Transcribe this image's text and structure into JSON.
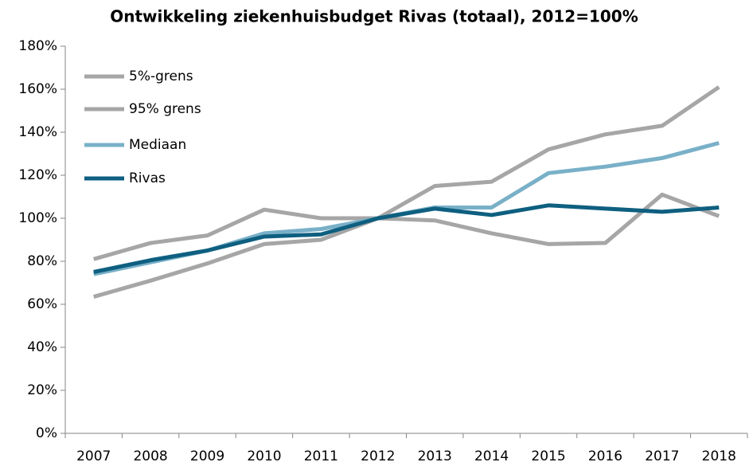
{
  "chart_data": {
    "type": "line",
    "title": "Ontwikkeling ziekenhuisbudget Rivas (totaal), 2012=100%",
    "categories": [
      "2007",
      "2008",
      "2009",
      "2010",
      "2011",
      "2012",
      "2013",
      "2014",
      "2015",
      "2016",
      "2017",
      "2018"
    ],
    "series": [
      {
        "name": "5%-grens",
        "color": "#a6a6a6",
        "values": [
          63.5,
          71,
          79,
          88,
          90,
          100,
          115,
          117,
          132,
          139,
          143,
          161
        ]
      },
      {
        "name": "95% grens",
        "color": "#a6a6a6",
        "values": [
          81,
          88.5,
          92,
          104,
          100,
          100,
          99,
          93,
          88,
          88.5,
          111,
          101
        ]
      },
      {
        "name": "Mediaan",
        "color": "#79b0c8",
        "values": [
          74,
          79.5,
          85,
          93,
          95,
          100,
          105,
          105,
          121,
          124,
          128,
          135
        ]
      },
      {
        "name": "Rivas",
        "color": "#0e5f80",
        "values": [
          75,
          80.5,
          85,
          91.5,
          92.5,
          100,
          104.5,
          101.5,
          106,
          104.5,
          103,
          105
        ]
      }
    ],
    "ylim": [
      0,
      180
    ],
    "yticks": [
      {
        "value": 0,
        "label": "0%"
      },
      {
        "value": 20,
        "label": "20%"
      },
      {
        "value": 40,
        "label": "40%"
      },
      {
        "value": 60,
        "label": "60%"
      },
      {
        "value": 80,
        "label": "80%"
      },
      {
        "value": 100,
        "label": "100%"
      },
      {
        "value": 120,
        "label": "120%"
      },
      {
        "value": 140,
        "label": "140%"
      },
      {
        "value": 160,
        "label": "160%"
      },
      {
        "value": 180,
        "label": "180%"
      }
    ],
    "grid": false,
    "legend": "upper-left"
  }
}
